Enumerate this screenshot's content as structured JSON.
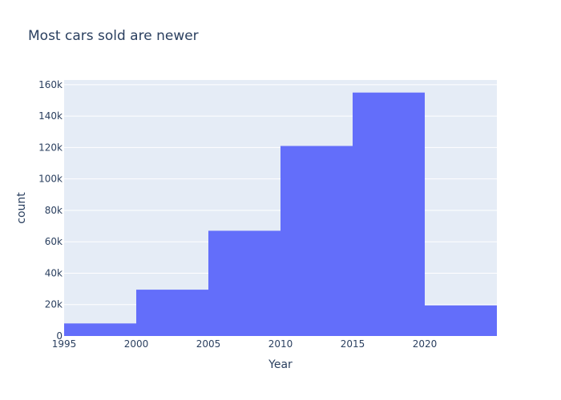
{
  "chart_data": {
    "type": "bar",
    "title": "Most cars sold are newer",
    "xlabel": "Year",
    "ylabel": "count",
    "bin_width": 5,
    "bins": [
      {
        "start": 1995,
        "end": 2000,
        "count": 8000
      },
      {
        "start": 2000,
        "end": 2005,
        "count": 29500
      },
      {
        "start": 2005,
        "end": 2010,
        "count": 67000
      },
      {
        "start": 2010,
        "end": 2015,
        "count": 121000
      },
      {
        "start": 2015,
        "end": 2020,
        "count": 155000
      },
      {
        "start": 2020,
        "end": 2025,
        "count": 19500
      }
    ],
    "xlim": [
      1995,
      2025
    ],
    "ylim": [
      0,
      163000
    ],
    "x_ticks": [
      1995,
      2000,
      2005,
      2010,
      2015,
      2020
    ],
    "x_tick_labels": [
      "1995",
      "2000",
      "2005",
      "2010",
      "2015",
      "2020"
    ],
    "y_ticks": [
      0,
      20000,
      40000,
      60000,
      80000,
      100000,
      120000,
      140000,
      160000
    ],
    "y_tick_labels": [
      "0",
      "20k",
      "40k",
      "60k",
      "80k",
      "100k",
      "120k",
      "140k",
      "160k"
    ],
    "grid": true,
    "colors": {
      "bar": "#636efa",
      "plot_bg": "#e5ecf6",
      "grid": "#ffffff",
      "text": "#2a3f5f"
    }
  }
}
